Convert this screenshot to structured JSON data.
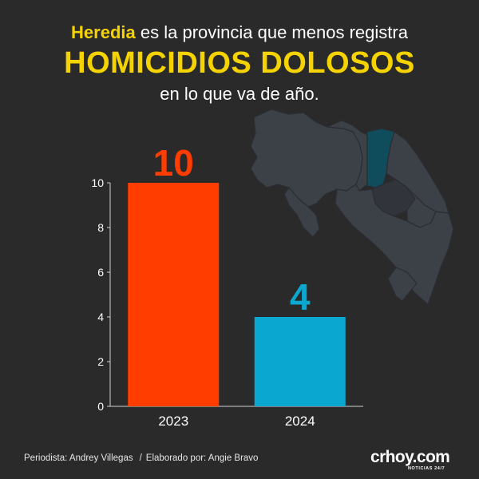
{
  "headline": {
    "line1_highlight": "Heredia",
    "line1_rest": " es la provincia que menos registra",
    "line2": "HOMICIDIOS DOLOSOS",
    "line3": "en lo que va de año."
  },
  "colors": {
    "background": "#2b2a2a",
    "accent": "#f5d300",
    "bar_2023": "#ff3d00",
    "bar_2024": "#0aa8d0",
    "map_base": "#3c4047",
    "map_highlight": "#0f4d5c"
  },
  "chart_data": {
    "type": "bar",
    "categories": [
      "2023",
      "2024"
    ],
    "values": [
      10,
      4
    ],
    "value_labels": [
      "10",
      "4"
    ],
    "ylim": [
      0,
      10
    ],
    "yticks": [
      0,
      2,
      4,
      6,
      8,
      10
    ],
    "bar_colors": [
      "#ff3d00",
      "#0aa8d0"
    ],
    "grid": false,
    "legend": "none"
  },
  "map": {
    "icon": "costa-rica-map-icon",
    "highlighted_province": "Heredia"
  },
  "footer": {
    "journalist": "Periodista: Andrey Villegas",
    "separator": "/",
    "designer": "Elaborado por: Angie Bravo"
  },
  "logo": {
    "main": "crhoy.com",
    "sub": "NOTICIAS 24/7"
  }
}
